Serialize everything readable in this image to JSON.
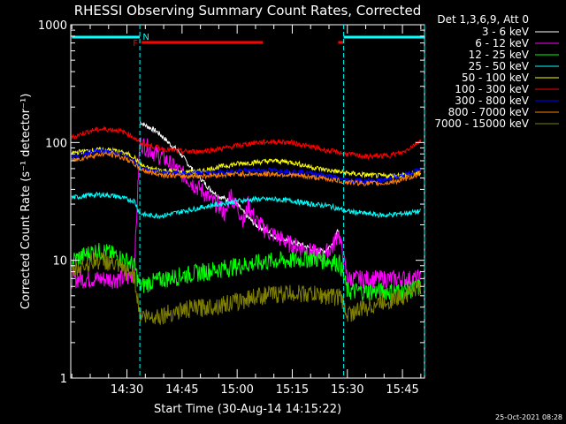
{
  "chart_data": {
    "type": "line",
    "title": "RHESSI Observing Summary Count Rates, Corrected",
    "xlabel": "Start Time (30-Aug-14 14:15:22)",
    "ylabel": "Corrected Count Rate (s⁻¹ detector⁻¹)",
    "y_scale": "log",
    "ylim": [
      1,
      1000
    ],
    "y_ticks": [
      {
        "value": 1,
        "label": "1"
      },
      {
        "value": 10,
        "label": "10"
      },
      {
        "value": 100,
        "label": "100"
      },
      {
        "value": 1000,
        "label": "1000"
      }
    ],
    "x_range_minutes": [
      14.7,
      111
    ],
    "x_ticks": [
      {
        "minute": 30,
        "label": "14:30"
      },
      {
        "minute": 45,
        "label": "14:45"
      },
      {
        "minute": 60,
        "label": "15:00"
      },
      {
        "minute": 75,
        "label": "15:15"
      },
      {
        "minute": 90,
        "label": "15:30"
      },
      {
        "minute": 105,
        "label": "15:45"
      }
    ],
    "legend_title": "Det 1,3,6,9, Att 0",
    "legend_position": "right",
    "series": [
      {
        "name": "3 - 6 keV",
        "color": "#ffffff",
        "x": [
          33.5,
          35,
          38,
          40,
          42,
          44,
          46,
          48,
          50,
          52,
          55,
          58,
          60,
          62,
          65,
          68,
          70,
          73,
          76,
          79,
          82,
          84,
          86,
          87.5
        ],
        "y": [
          150,
          140,
          125,
          110,
          95,
          85,
          70,
          58,
          50,
          42,
          35,
          32,
          30,
          25,
          20,
          18,
          16,
          15,
          14,
          13,
          12,
          12,
          14,
          18
        ]
      },
      {
        "name": "6 - 12 keV",
        "color": "#ff00ff",
        "x": [
          15,
          18,
          21,
          24,
          27,
          30,
          32,
          33.5,
          36,
          38,
          40,
          42,
          45,
          48,
          51,
          53,
          55,
          57,
          58,
          60,
          62,
          63,
          65,
          68,
          71,
          74,
          77,
          80,
          83,
          86,
          87.5,
          90,
          95,
          100,
          105,
          110
        ],
        "y": [
          7,
          7,
          7,
          7,
          7,
          7,
          8,
          100,
          90,
          80,
          75,
          65,
          55,
          45,
          38,
          32,
          30,
          24,
          38,
          28,
          22,
          30,
          22,
          18,
          16,
          14,
          13,
          12,
          11,
          13,
          18,
          7,
          7,
          7,
          7,
          7
        ]
      },
      {
        "name": "12 - 25 keV",
        "color": "#00ff00",
        "x": [
          15,
          18,
          21,
          24,
          27,
          30,
          32,
          33.5,
          36,
          40,
          45,
          50,
          55,
          60,
          65,
          70,
          75,
          80,
          85,
          88,
          90,
          95,
          100,
          105,
          110
        ],
        "y": [
          10,
          11,
          12,
          12,
          11,
          10,
          9,
          6,
          6.5,
          7,
          7.5,
          8,
          8.5,
          9,
          9.5,
          10,
          10,
          10.5,
          10,
          9.5,
          5.5,
          5.5,
          5.5,
          5.5,
          6
        ]
      },
      {
        "name": "25 - 50 keV",
        "color": "#00ffff",
        "x": [
          15,
          18,
          21,
          24,
          27,
          30,
          32,
          33.5,
          36,
          40,
          45,
          50,
          55,
          60,
          65,
          70,
          75,
          80,
          85,
          90,
          95,
          100,
          105,
          110
        ],
        "y": [
          34,
          35,
          36,
          36,
          35,
          33,
          32,
          25,
          24,
          24,
          26,
          28,
          30,
          32,
          33,
          33,
          32,
          30,
          29,
          26,
          25,
          24,
          25,
          26
        ]
      },
      {
        "name": "50 - 100 keV",
        "color": "#ffff00",
        "x": [
          15,
          18,
          21,
          24,
          27,
          30,
          32,
          33.5,
          36,
          40,
          45,
          50,
          55,
          60,
          65,
          70,
          75,
          80,
          85,
          90,
          95,
          100,
          105,
          110
        ],
        "y": [
          82,
          84,
          86,
          87,
          85,
          80,
          75,
          65,
          60,
          58,
          56,
          57,
          62,
          66,
          68,
          70,
          68,
          62,
          58,
          55,
          53,
          52,
          53,
          55
        ]
      },
      {
        "name": "100 - 300 keV",
        "color": "#ff0000",
        "x": [
          15,
          18,
          21,
          24,
          27,
          30,
          32,
          33.5,
          36,
          40,
          45,
          50,
          55,
          60,
          65,
          70,
          75,
          80,
          85,
          90,
          95,
          100,
          105,
          110
        ],
        "y": [
          110,
          120,
          128,
          130,
          128,
          120,
          110,
          100,
          95,
          88,
          84,
          84,
          88,
          94,
          100,
          102,
          100,
          92,
          85,
          80,
          76,
          77,
          82,
          105
        ]
      },
      {
        "name": "300 - 800 keV",
        "color": "#0000ff",
        "x": [
          15,
          18,
          21,
          24,
          27,
          30,
          32,
          33.5,
          36,
          40,
          45,
          50,
          55,
          60,
          65,
          70,
          75,
          80,
          85,
          90,
          95,
          100,
          105,
          110
        ],
        "y": [
          75,
          80,
          84,
          85,
          82,
          76,
          70,
          62,
          58,
          56,
          55,
          55,
          56,
          57,
          58,
          58,
          57,
          55,
          52,
          48,
          47,
          48,
          52,
          60
        ]
      },
      {
        "name": "800 - 7000 keV",
        "color": "#ff8000",
        "x": [
          15,
          18,
          21,
          24,
          27,
          30,
          32,
          33.5,
          36,
          40,
          45,
          50,
          55,
          60,
          65,
          70,
          75,
          80,
          85,
          90,
          95,
          100,
          105,
          110
        ],
        "y": [
          70,
          74,
          78,
          80,
          78,
          72,
          66,
          60,
          56,
          53,
          52,
          52,
          53,
          54,
          54,
          54,
          53,
          51,
          49,
          46,
          45,
          45,
          48,
          55
        ]
      },
      {
        "name": "7000 - 15000 keV",
        "color": "#808000",
        "x": [
          15,
          18,
          21,
          24,
          27,
          30,
          32,
          33.5,
          36,
          40,
          45,
          50,
          55,
          60,
          65,
          70,
          75,
          80,
          85,
          88,
          90,
          95,
          100,
          105,
          110
        ],
        "y": [
          8,
          9,
          10,
          10,
          9,
          8,
          7.5,
          3.5,
          3.3,
          3.5,
          3.8,
          4,
          4.2,
          4.5,
          5,
          5.2,
          5.3,
          5.2,
          5,
          5,
          3.5,
          4,
          4.5,
          5,
          6
        ]
      }
    ],
    "flags": [
      {
        "label": "F",
        "color": "#ff0000",
        "ranges": [
          [
            34,
            67
          ],
          [
            87.5,
            89
          ]
        ]
      },
      {
        "label": "N",
        "color": "#00ffff",
        "ranges": [
          [
            15,
            33.5
          ],
          [
            89,
            111
          ]
        ]
      }
    ],
    "night_boundaries": [
      33.5,
      89,
      111
    ],
    "footer_timestamp": "25-Oct-2021 08:28"
  }
}
